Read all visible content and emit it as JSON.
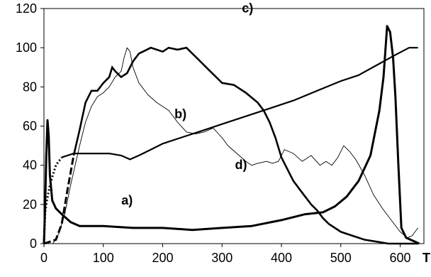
{
  "chart_data": {
    "type": "line",
    "xlabel": "T",
    "ylabel": "",
    "xlim": [
      0,
      640
    ],
    "ylim": [
      0,
      120
    ],
    "x_ticks": [
      0,
      100,
      200,
      300,
      400,
      500,
      600
    ],
    "y_ticks": [
      0,
      20,
      40,
      60,
      80,
      100,
      120
    ],
    "grid": false,
    "legend": "none",
    "series": [
      {
        "name": "a)",
        "style": "thick-solid",
        "points": [
          [
            0,
            0
          ],
          [
            2,
            20
          ],
          [
            4,
            45
          ],
          [
            6,
            63
          ],
          [
            8,
            55
          ],
          [
            10,
            35
          ],
          [
            14,
            22
          ],
          [
            20,
            18
          ],
          [
            30,
            15
          ],
          [
            45,
            11
          ],
          [
            60,
            9
          ],
          [
            100,
            9
          ],
          [
            150,
            8
          ],
          [
            200,
            8
          ],
          [
            250,
            7
          ],
          [
            300,
            8
          ],
          [
            350,
            9
          ],
          [
            400,
            12
          ],
          [
            440,
            15
          ],
          [
            470,
            16
          ],
          [
            490,
            19
          ],
          [
            510,
            24
          ],
          [
            530,
            32
          ],
          [
            550,
            45
          ],
          [
            565,
            68
          ],
          [
            572,
            85
          ],
          [
            578,
            111
          ],
          [
            583,
            108
          ],
          [
            588,
            95
          ],
          [
            592,
            75
          ],
          [
            597,
            40
          ],
          [
            602,
            8
          ],
          [
            610,
            3
          ],
          [
            625,
            1
          ],
          [
            632,
            0
          ]
        ]
      },
      {
        "name": "b)",
        "style": "dotted-then-solid",
        "points": [
          [
            0,
            0
          ],
          [
            2,
            16
          ],
          [
            5,
            22
          ],
          [
            10,
            30
          ],
          [
            20,
            40
          ],
          [
            30,
            44
          ],
          [
            50,
            46
          ],
          [
            80,
            46
          ],
          [
            110,
            46
          ],
          [
            130,
            45
          ],
          [
            145,
            43
          ],
          [
            160,
            45
          ],
          [
            180,
            48
          ],
          [
            200,
            51
          ],
          [
            230,
            54
          ],
          [
            260,
            57
          ],
          [
            300,
            61
          ],
          [
            340,
            65
          ],
          [
            380,
            69
          ],
          [
            420,
            73
          ],
          [
            460,
            78
          ],
          [
            500,
            83
          ],
          [
            530,
            86
          ],
          [
            560,
            91
          ],
          [
            590,
            96
          ],
          [
            615,
            100
          ],
          [
            630,
            100
          ]
        ]
      },
      {
        "name": "c)",
        "style": "thick-dashed-then-solid",
        "points": [
          [
            0,
            0
          ],
          [
            20,
            2
          ],
          [
            30,
            10
          ],
          [
            40,
            28
          ],
          [
            50,
            45
          ],
          [
            60,
            58
          ],
          [
            70,
            72
          ],
          [
            80,
            78
          ],
          [
            90,
            78
          ],
          [
            100,
            82
          ],
          [
            110,
            85
          ],
          [
            115,
            90
          ],
          [
            120,
            88
          ],
          [
            130,
            85
          ],
          [
            140,
            87
          ],
          [
            150,
            93
          ],
          [
            160,
            97
          ],
          [
            180,
            100
          ],
          [
            200,
            98
          ],
          [
            210,
            100
          ],
          [
            225,
            99
          ],
          [
            240,
            100
          ],
          [
            260,
            94
          ],
          [
            280,
            88
          ],
          [
            300,
            82
          ],
          [
            320,
            81
          ],
          [
            340,
            77
          ],
          [
            360,
            72
          ],
          [
            370,
            68
          ],
          [
            380,
            62
          ],
          [
            390,
            54
          ],
          [
            400,
            44
          ],
          [
            410,
            38
          ],
          [
            420,
            32
          ],
          [
            430,
            28
          ],
          [
            440,
            24
          ],
          [
            450,
            20
          ],
          [
            460,
            17
          ],
          [
            470,
            13
          ],
          [
            480,
            10
          ],
          [
            490,
            8
          ],
          [
            500,
            6
          ],
          [
            520,
            4
          ],
          [
            540,
            2
          ],
          [
            560,
            1
          ],
          [
            580,
            0
          ],
          [
            630,
            0
          ]
        ]
      },
      {
        "name": "d)",
        "style": "thin-solid",
        "points": [
          [
            0,
            0
          ],
          [
            15,
            0
          ],
          [
            25,
            5
          ],
          [
            35,
            15
          ],
          [
            45,
            30
          ],
          [
            60,
            50
          ],
          [
            70,
            62
          ],
          [
            80,
            70
          ],
          [
            90,
            75
          ],
          [
            100,
            77
          ],
          [
            110,
            80
          ],
          [
            120,
            85
          ],
          [
            130,
            88
          ],
          [
            135,
            95
          ],
          [
            140,
            100
          ],
          [
            145,
            98
          ],
          [
            150,
            90
          ],
          [
            160,
            82
          ],
          [
            175,
            76
          ],
          [
            190,
            72
          ],
          [
            210,
            68
          ],
          [
            225,
            62
          ],
          [
            240,
            57
          ],
          [
            255,
            56
          ],
          [
            270,
            57
          ],
          [
            285,
            59
          ],
          [
            300,
            54
          ],
          [
            310,
            50
          ],
          [
            325,
            46
          ],
          [
            340,
            42
          ],
          [
            350,
            40
          ],
          [
            360,
            41
          ],
          [
            375,
            42
          ],
          [
            385,
            41
          ],
          [
            395,
            42
          ],
          [
            405,
            48
          ],
          [
            420,
            46
          ],
          [
            435,
            42
          ],
          [
            450,
            45
          ],
          [
            465,
            40
          ],
          [
            475,
            42
          ],
          [
            485,
            40
          ],
          [
            495,
            44
          ],
          [
            505,
            50
          ],
          [
            515,
            47
          ],
          [
            525,
            43
          ],
          [
            540,
            35
          ],
          [
            555,
            25
          ],
          [
            570,
            18
          ],
          [
            585,
            12
          ],
          [
            600,
            6
          ],
          [
            612,
            3
          ],
          [
            620,
            4
          ],
          [
            630,
            8
          ]
        ]
      }
    ],
    "annotations": [
      {
        "text": "a)",
        "x": 140,
        "y": 20
      },
      {
        "text": "b)",
        "x": 230,
        "y": 64
      },
      {
        "text": "c)",
        "x": 343,
        "y": 118
      },
      {
        "text": "d)",
        "x": 332,
        "y": 38
      }
    ]
  }
}
